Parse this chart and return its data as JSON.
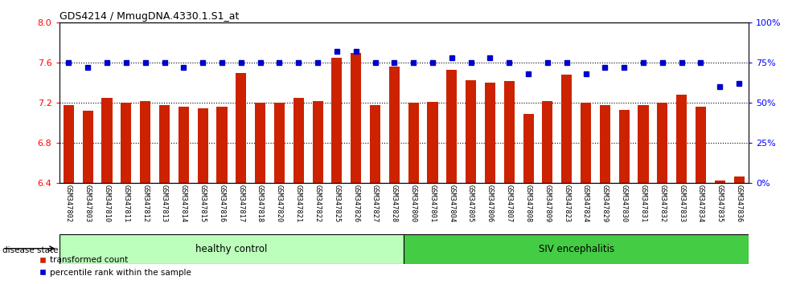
{
  "title": "GDS4214 / MmugDNA.4330.1.S1_at",
  "samples": [
    "GSM347802",
    "GSM347803",
    "GSM347810",
    "GSM347811",
    "GSM347812",
    "GSM347813",
    "GSM347814",
    "GSM347815",
    "GSM347816",
    "GSM347817",
    "GSM347818",
    "GSM347820",
    "GSM347821",
    "GSM347822",
    "GSM347825",
    "GSM347826",
    "GSM347827",
    "GSM347828",
    "GSM347800",
    "GSM347801",
    "GSM347804",
    "GSM347805",
    "GSM347806",
    "GSM347807",
    "GSM347808",
    "GSM347809",
    "GSM347823",
    "GSM347824",
    "GSM347829",
    "GSM347830",
    "GSM347831",
    "GSM347832",
    "GSM347833",
    "GSM347834",
    "GSM347835",
    "GSM347836"
  ],
  "bar_values": [
    7.18,
    7.12,
    7.25,
    7.2,
    7.22,
    7.18,
    7.16,
    7.15,
    7.16,
    7.5,
    7.2,
    7.2,
    7.25,
    7.22,
    7.65,
    7.7,
    7.18,
    7.56,
    7.2,
    7.21,
    7.53,
    7.43,
    7.4,
    7.42,
    7.09,
    7.22,
    7.48,
    7.2,
    7.18,
    7.13,
    7.18,
    7.2,
    7.28,
    7.16,
    6.43,
    6.47
  ],
  "percentile_values": [
    75,
    72,
    75,
    75,
    75,
    75,
    72,
    75,
    75,
    75,
    75,
    75,
    75,
    75,
    82,
    82,
    75,
    75,
    75,
    75,
    78,
    75,
    78,
    75,
    68,
    75,
    75,
    68,
    72,
    72,
    75,
    75,
    75,
    75,
    60,
    62
  ],
  "healthy_count": 18,
  "ymin": 6.4,
  "ymax": 8.0,
  "ylim_left": [
    6.4,
    8.0
  ],
  "ylim_right": [
    0,
    100
  ],
  "yticks_left": [
    6.4,
    6.8,
    7.2,
    7.6,
    8.0
  ],
  "yticks_right": [
    0,
    25,
    50,
    75,
    100
  ],
  "ytick_labels_right": [
    "0%",
    "25%",
    "50%",
    "75%",
    "100%"
  ],
  "bar_color": "#cc2200",
  "dot_color": "#0000cc",
  "healthy_color": "#bbffbb",
  "siv_color": "#44cc44",
  "disease_label_healthy": "healthy control",
  "disease_label_siv": "SIV encephalitis",
  "disease_state_label": "disease state",
  "legend_bar_label": "transformed count",
  "legend_dot_label": "percentile rank within the sample",
  "grid_color": "black"
}
